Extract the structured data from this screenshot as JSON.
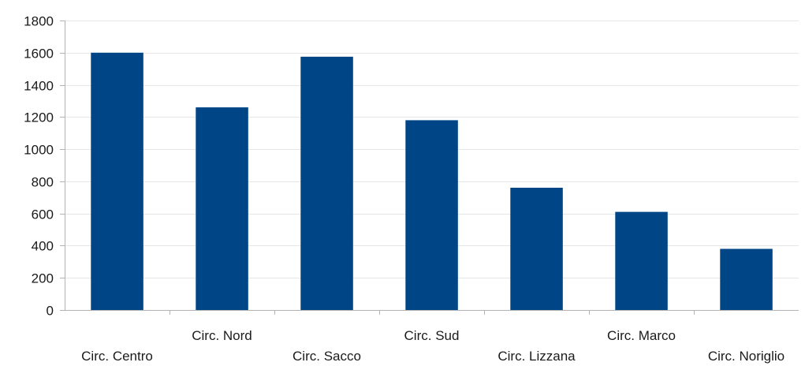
{
  "chart_data": {
    "type": "bar",
    "title": "",
    "xlabel": "",
    "ylabel": "",
    "categories": [
      "Circ. Centro",
      "Circ. Nord",
      "Circ. Sacco",
      "Circ. Sud",
      "Circ. Lizzana",
      "Circ. Marco",
      "Circ. Noriglio"
    ],
    "values": [
      1600,
      1260,
      1575,
      1180,
      760,
      610,
      380
    ],
    "ylim": [
      0,
      1800
    ],
    "yticks": [
      0,
      200,
      400,
      600,
      800,
      1000,
      1200,
      1400,
      1600,
      1800
    ],
    "grid": true,
    "legend": "none",
    "bar_color": "#004586"
  }
}
